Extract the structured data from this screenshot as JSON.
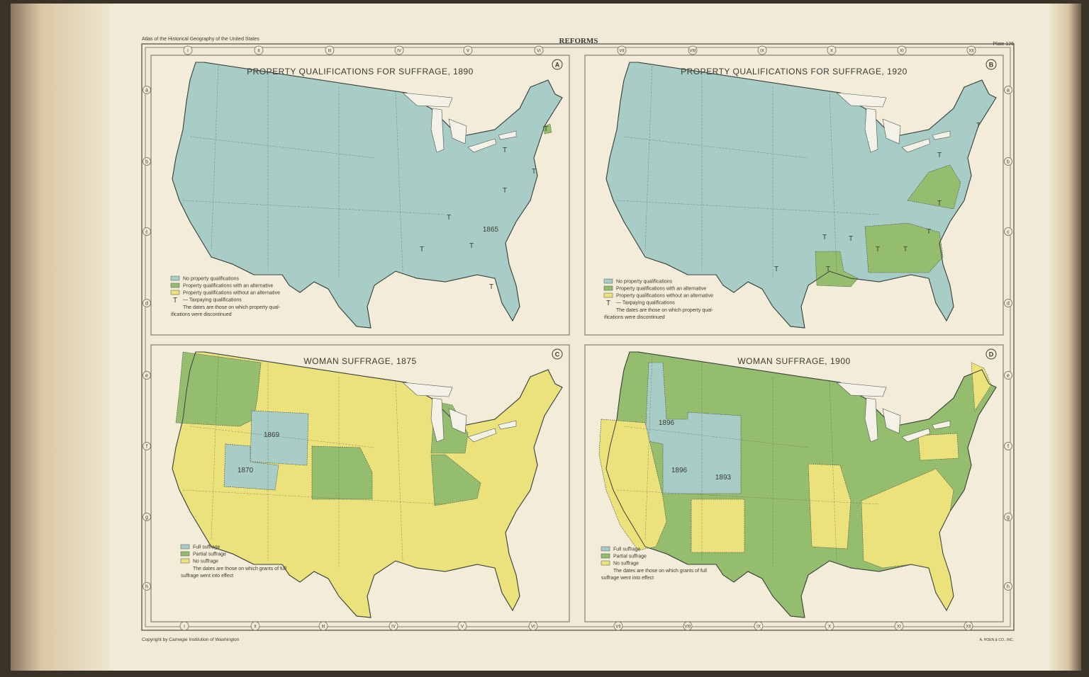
{
  "header": {
    "atlas": "Atlas of the Historical Geography of the United States",
    "title": "REFORMS",
    "plate": "Plate 126"
  },
  "columns": [
    "I",
    "II",
    "III",
    "IV",
    "V",
    "VI",
    "VII",
    "VIII",
    "IX",
    "X",
    "XI",
    "XII"
  ],
  "rows": [
    "a",
    "b",
    "c",
    "d",
    "e",
    "f",
    "g",
    "h"
  ],
  "maps": [
    {
      "letter": "A",
      "title": "PROPERTY QUALIFICATIONS FOR SUFFRAGE, 1890",
      "legend": [
        {
          "label": "No property qualifications",
          "color": "#a8cdc6"
        },
        {
          "label": "Property qualifications with an alternative",
          "color": "#95bd6e"
        },
        {
          "label": "Property qualifications without an alternative",
          "color": "#ece27c"
        },
        {
          "symbol": "T",
          "label": "— Taxpaying qualifications"
        }
      ],
      "note": [
        "The dates are those on which property qual-",
        "ifications were discontinued"
      ],
      "labels": [
        "T",
        "T",
        "T",
        "T",
        "T",
        "T",
        "T",
        "T",
        "1865"
      ]
    },
    {
      "letter": "B",
      "title": "PROPERTY QUALIFICATIONS FOR SUFFRAGE, 1920",
      "legend": [
        {
          "label": "No property qualifications",
          "color": "#a8cdc6"
        },
        {
          "label": "Property qualifications with an alternative",
          "color": "#95bd6e"
        },
        {
          "label": "Property qualifications without an alternative",
          "color": "#ece27c"
        },
        {
          "symbol": "T",
          "label": "— Taxpaying qualifications"
        }
      ],
      "note": [
        "The dates are those on which property qual-",
        "ifications were discontinued"
      ],
      "labels": [
        "T",
        "T",
        "T",
        "T",
        "T",
        "T",
        "T",
        "T",
        "T",
        "T"
      ]
    },
    {
      "letter": "C",
      "title": "WOMAN SUFFRAGE, 1875",
      "legend": [
        {
          "label": "Full suffrage",
          "color": "#a8cdc6"
        },
        {
          "label": "Partial suffrage",
          "color": "#95bd6e"
        },
        {
          "label": "No suffrage",
          "color": "#ece27c"
        }
      ],
      "note": [
        "The dates are those on which grants of full",
        "suffrage went into effect"
      ],
      "labels": [
        "1869",
        "1870"
      ]
    },
    {
      "letter": "D",
      "title": "WOMAN SUFFRAGE, 1900",
      "legend": [
        {
          "label": "Full suffrage",
          "color": "#a8cdc6"
        },
        {
          "label": "Partial suffrage",
          "color": "#95bd6e"
        },
        {
          "label": "No suffrage",
          "color": "#ece27c"
        }
      ],
      "note": [
        "The dates are those on which grants of full",
        "suffrage went into effect"
      ],
      "labels": [
        "1896",
        "1896",
        "1893"
      ]
    }
  ],
  "footer": {
    "copyright": "Copyright by Carnegie Institution of Washington",
    "printer": "A. HOEN & CO., INC."
  }
}
